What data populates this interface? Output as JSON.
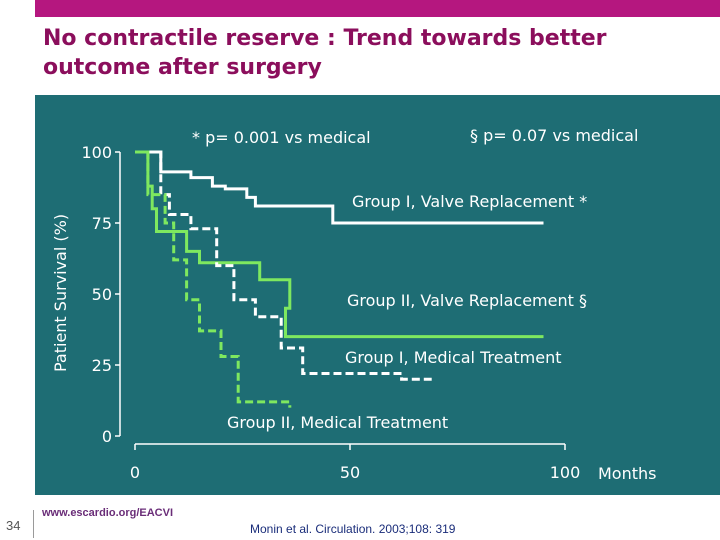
{
  "slide": {
    "title": "No contractile reserve : Trend towards better outcome after surgery",
    "page_number": "34",
    "footer_url": "www.escardio.org/EACVI",
    "citation": "Monin et al. Circulation. 2003;108: 319"
  },
  "colors": {
    "title": "#8b0e5c",
    "top_bar": "#b5177f",
    "panel": "#1e6d74",
    "surgery_curves": "#7ee85f",
    "medical_curves": "#ffffff"
  },
  "chart_data": {
    "type": "line",
    "subtype": "kaplan-meier step curves",
    "ylabel": "Patient Survival (%)",
    "xlabel": "Months",
    "xlim": [
      0,
      100
    ],
    "ylim": [
      0,
      100
    ],
    "x_ticks": [
      "0",
      "50",
      "100"
    ],
    "y_ticks": [
      "100",
      "75",
      "50",
      "25",
      "0"
    ],
    "annotations": [
      "* p= 0.001 vs medical",
      "§ p= 0.07 vs medical"
    ],
    "series": [
      {
        "name": "Group I, Valve Replacement *",
        "color": "#ffffff",
        "dash": "solid",
        "points": [
          [
            0,
            100
          ],
          [
            6,
            100
          ],
          [
            6,
            93
          ],
          [
            13,
            93
          ],
          [
            13,
            91
          ],
          [
            18,
            91
          ],
          [
            18,
            88
          ],
          [
            21,
            88
          ],
          [
            21,
            87
          ],
          [
            26,
            87
          ],
          [
            26,
            84
          ],
          [
            28,
            84
          ],
          [
            28,
            81
          ],
          [
            46,
            81
          ],
          [
            46,
            75
          ],
          [
            95,
            75
          ]
        ]
      },
      {
        "name": "Group II, Valve Replacement §",
        "color": "#7ee85f",
        "dash": "solid",
        "points": [
          [
            0,
            100
          ],
          [
            3,
            100
          ],
          [
            3,
            88
          ],
          [
            4,
            88
          ],
          [
            4,
            80
          ],
          [
            5,
            80
          ],
          [
            5,
            72
          ],
          [
            12,
            72
          ],
          [
            12,
            65
          ],
          [
            15,
            65
          ],
          [
            15,
            61
          ],
          [
            29,
            61
          ],
          [
            29,
            55
          ],
          [
            36,
            55
          ],
          [
            36,
            45
          ],
          [
            35,
            45
          ],
          [
            35,
            35
          ],
          [
            95,
            35
          ]
        ]
      },
      {
        "name": "Group I, Medical Treatment",
        "color": "#ffffff",
        "dash": "dashed",
        "points": [
          [
            0,
            100
          ],
          [
            6,
            100
          ],
          [
            6,
            85
          ],
          [
            8,
            85
          ],
          [
            8,
            78
          ],
          [
            13,
            78
          ],
          [
            13,
            73
          ],
          [
            19,
            73
          ],
          [
            19,
            60
          ],
          [
            23,
            60
          ],
          [
            23,
            48
          ],
          [
            28,
            48
          ],
          [
            28,
            42
          ],
          [
            34,
            42
          ],
          [
            34,
            31
          ],
          [
            39,
            31
          ],
          [
            39,
            22
          ],
          [
            62,
            22
          ],
          [
            62,
            20
          ],
          [
            69,
            20
          ]
        ]
      },
      {
        "name": "Group II, Medical Treatment",
        "color": "#7ee85f",
        "dash": "dashed",
        "points": [
          [
            0,
            100
          ],
          [
            3,
            100
          ],
          [
            3,
            85
          ],
          [
            7,
            85
          ],
          [
            7,
            75
          ],
          [
            9,
            75
          ],
          [
            9,
            62
          ],
          [
            12,
            62
          ],
          [
            12,
            48
          ],
          [
            15,
            48
          ],
          [
            15,
            37
          ],
          [
            20,
            37
          ],
          [
            20,
            28
          ],
          [
            24,
            28
          ],
          [
            24,
            12
          ],
          [
            36,
            12
          ],
          [
            36,
            10
          ]
        ]
      }
    ],
    "series_labels": {
      "g1_surgery": "Group I, Valve Replacement *",
      "g2_surgery": "Group II, Valve Replacement §",
      "g1_medical": "Group I, Medical Treatment",
      "g2_medical": "Group II, Medical Treatment"
    }
  }
}
